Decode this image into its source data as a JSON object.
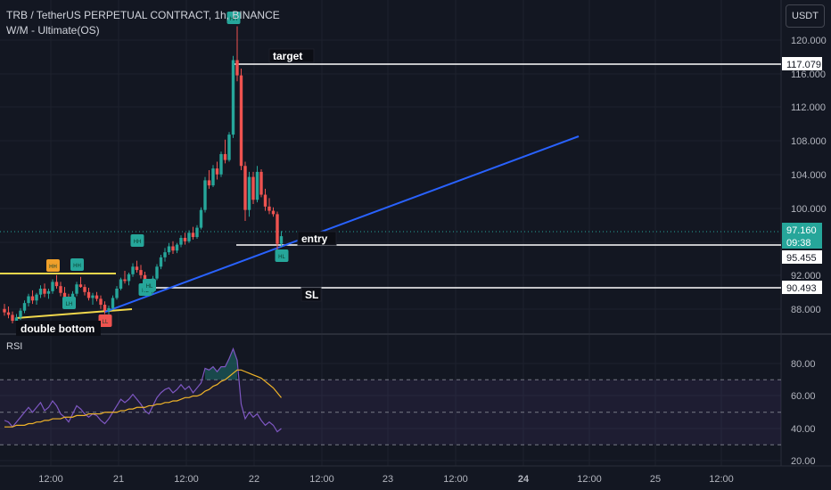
{
  "header": {
    "symbol_line": "TRB / TetherUS PERPETUAL CONTRACT, 1h, BINANCE",
    "indicator": "W/M - Ultimate(OS)",
    "currency": "USDT"
  },
  "chart_data": {
    "type": "candlestick",
    "price_axis": {
      "ticks": [
        "120.000",
        "116.000",
        "112.000",
        "108.000",
        "104.000",
        "100.000",
        "96.000",
        "92.000",
        "88.000"
      ],
      "range": [
        86,
        122
      ]
    },
    "time_axis": {
      "ticks": [
        "12:00",
        "21",
        "12:00",
        "22",
        "12:00",
        "23",
        "12:00",
        "24",
        "12:00",
        "25",
        "12:00"
      ]
    },
    "price_labels": [
      {
        "value": "117.079",
        "kind": "target-line",
        "color": "#ffffff"
      },
      {
        "value": "97.160",
        "kind": "last-price",
        "color": "#26a69a"
      },
      {
        "value": "09:38",
        "kind": "countdown",
        "color": "#26a69a"
      },
      {
        "value": "95.455",
        "kind": "entry-line",
        "color": "#ffffff"
      },
      {
        "value": "90.493",
        "kind": "sl-line",
        "color": "#ffffff"
      }
    ],
    "annotations": {
      "target": "target",
      "entry": "entry",
      "sl": "SL",
      "pattern": "double bottom"
    },
    "markers": [
      "HH",
      "LH",
      "HH",
      "HL",
      "HH",
      "HL",
      "LL",
      "HH",
      "HL"
    ],
    "rsi": {
      "label": "RSI",
      "ticks": [
        "80.00",
        "60.00",
        "40.00",
        "20.00"
      ],
      "range": [
        15,
        92
      ],
      "upper_band": 70,
      "lower_band": 30,
      "middle": 50
    },
    "colors": {
      "up": "#26a69a",
      "down": "#ef5350",
      "trendline": "#2962ff",
      "rsi_line": "#7e57c2",
      "rsi_ma": "#f0b429"
    },
    "candles": [
      [
        88.6,
        89.2,
        87.8,
        88.2
      ],
      [
        88.2,
        88.9,
        87.5,
        87.9
      ],
      [
        87.9,
        88.3,
        86.9,
        87.2
      ],
      [
        87.2,
        88.0,
        86.6,
        87.6
      ],
      [
        87.6,
        88.7,
        87.3,
        88.4
      ],
      [
        88.4,
        89.6,
        88.1,
        89.3
      ],
      [
        89.3,
        90.4,
        88.9,
        90.1
      ],
      [
        90.1,
        90.8,
        89.2,
        89.6
      ],
      [
        89.6,
        90.5,
        89.1,
        90.3
      ],
      [
        90.3,
        91.4,
        89.9,
        91.0
      ],
      [
        91.0,
        91.6,
        90.0,
        90.4
      ],
      [
        90.4,
        91.0,
        89.8,
        90.7
      ],
      [
        90.7,
        92.1,
        90.4,
        91.8
      ],
      [
        91.8,
        92.6,
        91.0,
        91.3
      ],
      [
        91.3,
        91.8,
        90.1,
        90.5
      ],
      [
        90.5,
        91.2,
        89.6,
        90.0
      ],
      [
        90.0,
        90.4,
        88.8,
        89.4
      ],
      [
        89.4,
        90.7,
        89.2,
        90.4
      ],
      [
        90.4,
        91.8,
        90.1,
        91.5
      ],
      [
        91.5,
        92.4,
        91.1,
        91.2
      ],
      [
        91.2,
        91.5,
        90.2,
        90.6
      ],
      [
        90.6,
        91.1,
        89.6,
        89.9
      ],
      [
        89.9,
        90.5,
        89.1,
        90.2
      ],
      [
        90.2,
        90.6,
        89.5,
        89.8
      ],
      [
        89.8,
        90.2,
        88.6,
        89.1
      ],
      [
        89.1,
        89.5,
        88.0,
        88.4
      ],
      [
        88.4,
        89.0,
        87.6,
        88.7
      ],
      [
        88.7,
        90.2,
        88.5,
        89.9
      ],
      [
        89.9,
        91.3,
        89.7,
        91.0
      ],
      [
        91.0,
        92.3,
        90.8,
        92.1
      ],
      [
        92.1,
        93.1,
        91.6,
        91.9
      ],
      [
        91.9,
        92.9,
        91.4,
        92.7
      ],
      [
        92.7,
        94.0,
        92.4,
        93.6
      ],
      [
        93.6,
        94.3,
        92.9,
        93.2
      ],
      [
        93.2,
        93.8,
        92.2,
        92.6
      ],
      [
        92.6,
        93.0,
        91.1,
        91.5
      ],
      [
        91.5,
        91.8,
        90.3,
        90.6
      ],
      [
        90.6,
        92.5,
        90.4,
        92.2
      ],
      [
        92.2,
        93.9,
        92.0,
        93.6
      ],
      [
        93.6,
        95.0,
        93.3,
        94.7
      ],
      [
        94.7,
        95.8,
        94.2,
        95.3
      ],
      [
        95.3,
        96.4,
        95.0,
        96.0
      ],
      [
        96.0,
        96.6,
        95.1,
        95.5
      ],
      [
        95.5,
        96.4,
        95.2,
        96.2
      ],
      [
        96.2,
        97.3,
        95.9,
        97.0
      ],
      [
        97.0,
        97.6,
        96.2,
        96.6
      ],
      [
        96.6,
        97.9,
        96.4,
        97.6
      ],
      [
        97.6,
        98.3,
        96.8,
        97.1
      ],
      [
        97.1,
        98.5,
        96.9,
        98.2
      ],
      [
        98.2,
        100.6,
        98.0,
        100.3
      ],
      [
        100.3,
        104.2,
        100.0,
        103.8
      ],
      [
        103.8,
        105.0,
        102.8,
        103.2
      ],
      [
        103.2,
        105.6,
        103.0,
        105.2
      ],
      [
        105.2,
        106.0,
        103.9,
        104.5
      ],
      [
        104.5,
        107.2,
        104.2,
        106.9
      ],
      [
        106.9,
        108.6,
        105.8,
        106.2
      ],
      [
        106.2,
        109.5,
        106.0,
        109.2
      ],
      [
        109.2,
        118.5,
        108.8,
        118.0
      ],
      [
        118.0,
        122.0,
        115.5,
        116.2
      ],
      [
        116.2,
        117.0,
        105.0,
        105.5
      ],
      [
        105.5,
        106.0,
        99.0,
        100.3
      ],
      [
        100.3,
        104.8,
        99.5,
        104.2
      ],
      [
        104.2,
        104.8,
        101.0,
        101.5
      ],
      [
        101.5,
        105.5,
        101.2,
        104.8
      ],
      [
        104.8,
        105.1,
        101.8,
        102.1
      ],
      [
        102.1,
        102.8,
        100.2,
        100.7
      ],
      [
        100.7,
        101.7,
        99.8,
        100.2
      ],
      [
        100.2,
        100.6,
        99.5,
        99.8
      ],
      [
        99.8,
        100.1,
        95.5,
        96.3
      ],
      [
        96.3,
        97.8,
        95.9,
        97.2
      ]
    ],
    "rsi_values": [
      45,
      44,
      41,
      44,
      47,
      50,
      53,
      50,
      53,
      56,
      51,
      53,
      57,
      54,
      49,
      47,
      44,
      49,
      54,
      52,
      49,
      47,
      49,
      48,
      45,
      43,
      46,
      50,
      54,
      58,
      56,
      58,
      61,
      58,
      55,
      51,
      49,
      54,
      59,
      62,
      64,
      65,
      62,
      64,
      67,
      64,
      66,
      62,
      65,
      68,
      77,
      76,
      78,
      75,
      78,
      78,
      83,
      89,
      82,
      55,
      46,
      50,
      47,
      49,
      45,
      42,
      44,
      42,
      38,
      40
    ],
    "rsi_ma": [
      41,
      41,
      41,
      42,
      42,
      42,
      43,
      43,
      44,
      44,
      45,
      45,
      46,
      46,
      46,
      47,
      47,
      47,
      48,
      48,
      48,
      49,
      49,
      49,
      49,
      50,
      50,
      50,
      50,
      51,
      51,
      52,
      52,
      53,
      53,
      53,
      54,
      54,
      55,
      55,
      56,
      56,
      57,
      57,
      58,
      59,
      59,
      60,
      60,
      61,
      63,
      64,
      66,
      67,
      69,
      70,
      72,
      74,
      76,
      76,
      75,
      74,
      73,
      72,
      71,
      69,
      67,
      65,
      62,
      59
    ]
  }
}
